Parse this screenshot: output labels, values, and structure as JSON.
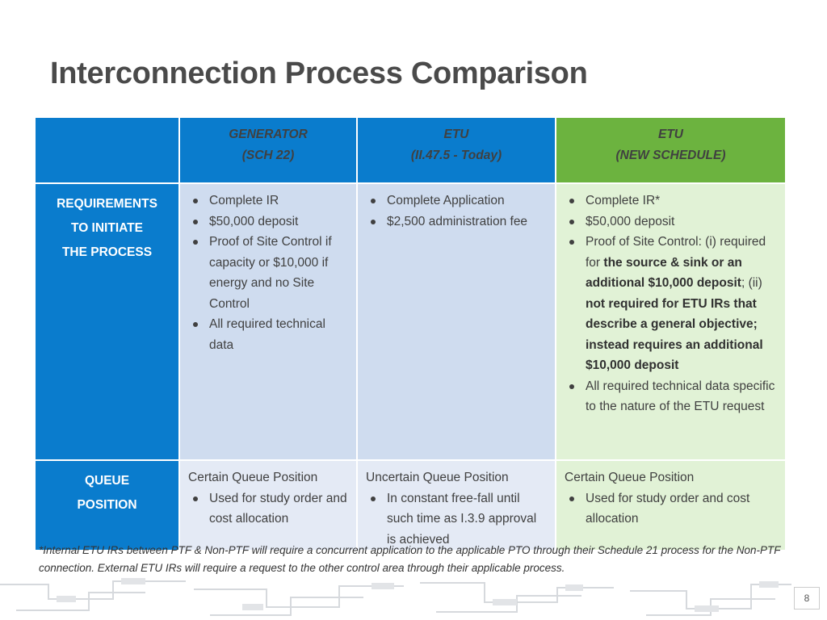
{
  "title": "Interconnection Process Comparison",
  "columns": [
    {
      "line1": "GENERATOR",
      "line2": "(SCH 22)"
    },
    {
      "line1": "ETU",
      "line2": "(II.47.5 - Today)"
    },
    {
      "line1": "ETU",
      "line2": "(NEW SCHEDULE)"
    }
  ],
  "rows": {
    "requirements": {
      "label1": "REQUIREMENTS",
      "label2": "TO INITIATE",
      "label3": "THE PROCESS",
      "generator": [
        "Complete IR",
        "$50,000 deposit",
        "Proof of Site Control if capacity or $10,000 if energy and no Site Control",
        "All required technical data"
      ],
      "etu_today": [
        "Complete Application",
        "$2,500 administration fee"
      ],
      "etu_new": {
        "b1": "Complete IR*",
        "b2": "$50,000 deposit",
        "b3_a": "Proof of Site Control: (i) required for ",
        "b3_b": "the source & sink or an additional $10,000 deposit",
        "b3_c": "; (ii) ",
        "b3_d": "not required for ETU IRs that describe a general objective; instead requires an additional $10,000 deposit",
        "b4": "All required technical data specific to the nature of the ETU request"
      }
    },
    "queue": {
      "label1": "QUEUE",
      "label2": "POSITION",
      "generator": {
        "head": "Certain Queue Position",
        "bullet": "Used for study order and cost allocation"
      },
      "etu_today": {
        "head": "Uncertain Queue Position",
        "bullet": "In constant free-fall until such time as I.3.9 approval is achieved"
      },
      "etu_new": {
        "head": "Certain Queue Position",
        "bullet": "Used for study order and cost allocation"
      }
    }
  },
  "footnote": "*Internal ETU IRs between PTF & Non-PTF will require a concurrent application to the applicable PTO through their Schedule 21 process for the Non-PTF connection.  External ETU IRs will require a request to the other control area through their applicable process.",
  "page_number": "8",
  "colors": {
    "header_blue": "#0a7ccd",
    "header_green": "#6cb33f",
    "cell_blue": "#cfdcef",
    "cell_green": "#e1f2d6"
  }
}
